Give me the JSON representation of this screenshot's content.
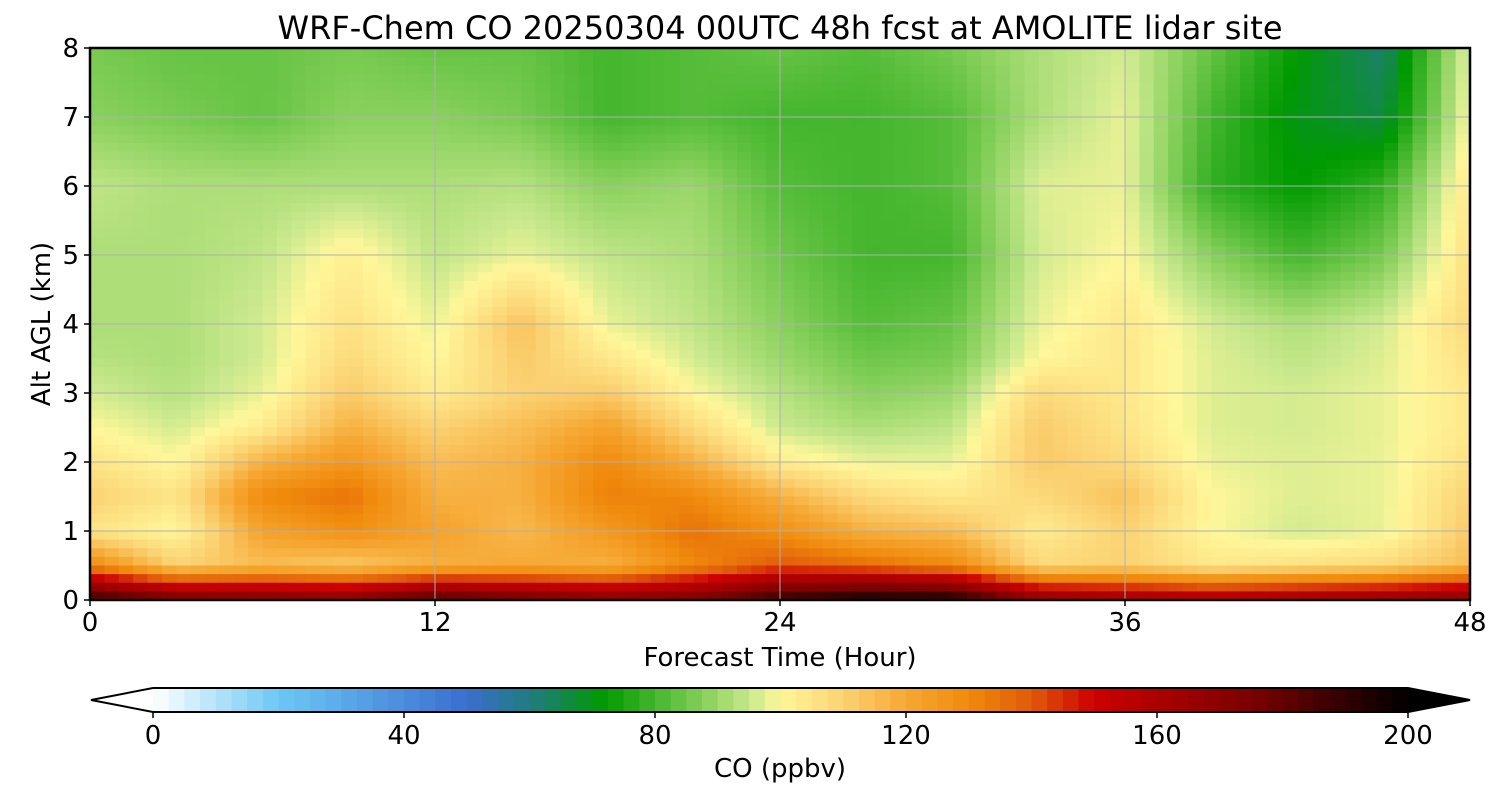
{
  "chart_data": {
    "type": "heatmap",
    "title": "WRF-Chem CO  20250304 00UTC 48h fcst at AMOLITE lidar site",
    "xlabel": "Forecast Time (Hour)",
    "ylabel": "Alt AGL (km)",
    "xlim": [
      0,
      48
    ],
    "ylim": [
      0,
      8
    ],
    "xticks": [
      0,
      12,
      24,
      36,
      48
    ],
    "yticks": [
      0,
      1,
      2,
      3,
      4,
      5,
      6,
      7,
      8
    ],
    "grid": true,
    "time_hours": [
      0,
      3,
      6,
      9,
      12,
      15,
      18,
      21,
      24,
      27,
      30,
      33,
      36,
      39,
      42,
      45,
      48
    ],
    "alt_km": [
      0,
      0.5,
      1,
      1.5,
      2,
      2.5,
      3,
      3.5,
      4,
      5,
      6,
      7,
      8
    ],
    "co_ppbv": [
      [
        190,
        178,
        175,
        172,
        185,
        178,
        172,
        175,
        190,
        198,
        196,
        170,
        165,
        162,
        165,
        168,
        172
      ],
      [
        130,
        110,
        115,
        112,
        118,
        120,
        118,
        130,
        140,
        136,
        130,
        108,
        110,
        104,
        106,
        108,
        115
      ],
      [
        105,
        100,
        122,
        128,
        122,
        116,
        125,
        135,
        128,
        118,
        115,
        103,
        110,
        100,
        96,
        98,
        112
      ],
      [
        110,
        105,
        130,
        135,
        118,
        118,
        132,
        130,
        118,
        108,
        104,
        108,
        114,
        100,
        97,
        98,
        110
      ],
      [
        105,
        100,
        118,
        126,
        115,
        118,
        130,
        118,
        103,
        98,
        98,
        112,
        108,
        98,
        97,
        98,
        106
      ],
      [
        100,
        96,
        103,
        118,
        110,
        115,
        122,
        108,
        95,
        92,
        94,
        112,
        105,
        97,
        96,
        98,
        104
      ],
      [
        96,
        93,
        98,
        112,
        103,
        110,
        112,
        100,
        93,
        88,
        90,
        108,
        104,
        97,
        96,
        98,
        104
      ],
      [
        93,
        92,
        96,
        108,
        100,
        112,
        104,
        96,
        90,
        85,
        86,
        100,
        104,
        97,
        94,
        97,
        106
      ],
      [
        92,
        92,
        96,
        106,
        98,
        114,
        98,
        94,
        88,
        82,
        84,
        98,
        104,
        96,
        92,
        96,
        108
      ],
      [
        92,
        92,
        94,
        102,
        94,
        98,
        94,
        92,
        85,
        80,
        80,
        96,
        100,
        88,
        80,
        86,
        106
      ],
      [
        94,
        92,
        92,
        92,
        92,
        93,
        88,
        90,
        82,
        80,
        82,
        97,
        98,
        78,
        72,
        78,
        104
      ],
      [
        88,
        86,
        84,
        88,
        88,
        86,
        80,
        82,
        80,
        80,
        82,
        92,
        98,
        80,
        70,
        66,
        100
      ],
      [
        86,
        84,
        84,
        86,
        84,
        84,
        80,
        82,
        84,
        82,
        86,
        92,
        96,
        84,
        72,
        62,
        98
      ]
    ],
    "colorbar": {
      "label": "CO  (ppbv)",
      "min": 0,
      "max": 200,
      "ticks": [
        0,
        40,
        80,
        120,
        160,
        200
      ],
      "extend": "both",
      "colormap_stops": [
        {
          "value": 0,
          "color": "#ffffff"
        },
        {
          "value": 20,
          "color": "#6cc8f5"
        },
        {
          "value": 50,
          "color": "#3a6ecf"
        },
        {
          "value": 62,
          "color": "#1c7f6e"
        },
        {
          "value": 72,
          "color": "#009a00"
        },
        {
          "value": 85,
          "color": "#6fc74a"
        },
        {
          "value": 95,
          "color": "#c8e88c"
        },
        {
          "value": 100,
          "color": "#fff79a"
        },
        {
          "value": 110,
          "color": "#fbd273"
        },
        {
          "value": 120,
          "color": "#f6a834"
        },
        {
          "value": 130,
          "color": "#f08a0c"
        },
        {
          "value": 140,
          "color": "#e05a0a"
        },
        {
          "value": 150,
          "color": "#cc0000"
        },
        {
          "value": 175,
          "color": "#7a0000"
        },
        {
          "value": 200,
          "color": "#000000"
        }
      ]
    }
  }
}
